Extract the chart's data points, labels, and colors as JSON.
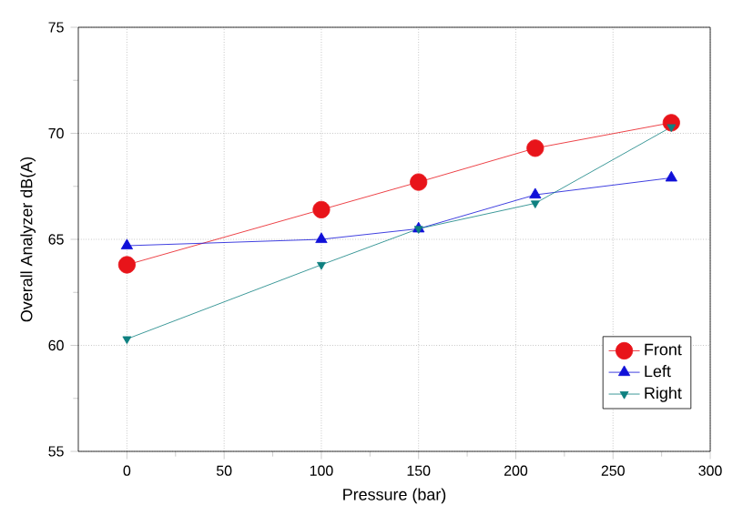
{
  "chart_data": {
    "type": "line",
    "xlabel": "Pressure (bar)",
    "ylabel": "Overall Analyzer dB(A)",
    "x": [
      0,
      100,
      150,
      210,
      280
    ],
    "series": [
      {
        "name": "Front",
        "color": "#e8141a",
        "marker": "circle",
        "values": [
          63.8,
          66.4,
          67.7,
          69.3,
          70.5
        ]
      },
      {
        "name": "Left",
        "color": "#1010d8",
        "marker": "triangle",
        "values": [
          64.7,
          65.0,
          65.5,
          67.1,
          67.9
        ]
      },
      {
        "name": "Right",
        "color": "#0e8080",
        "marker": "triangle_down",
        "values": [
          60.3,
          63.8,
          65.5,
          66.7,
          70.3
        ]
      }
    ],
    "xlim": [
      -25,
      300
    ],
    "xticks": [
      0,
      50,
      100,
      150,
      200,
      250,
      300
    ],
    "ylim": [
      55,
      75
    ],
    "yticks": [
      55,
      60,
      65,
      70,
      75
    ],
    "grid": true,
    "legend": "bottom right",
    "line_style": "solid"
  }
}
